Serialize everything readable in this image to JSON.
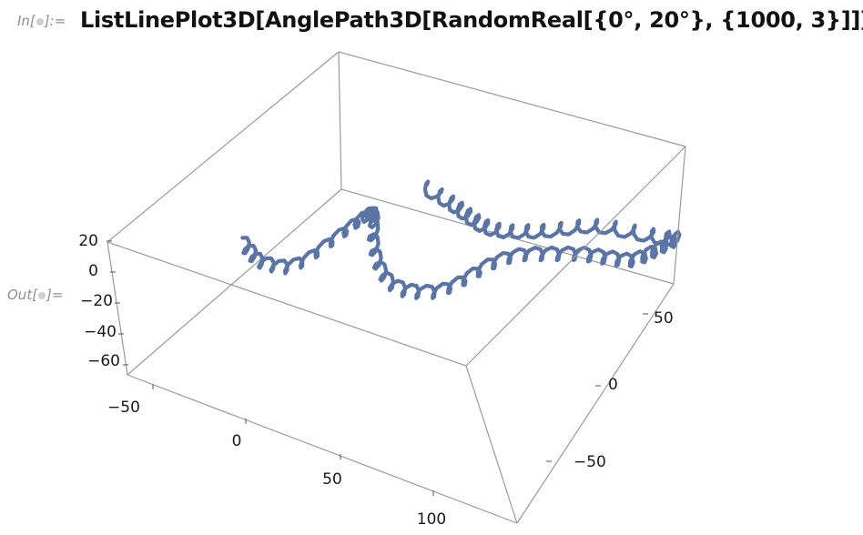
{
  "cell": {
    "in_label_prefix": "In[",
    "in_label_suffix": "]:=",
    "out_label_prefix": "Out[",
    "out_label_suffix": "]=",
    "input_code": "ListLinePlot3D[AnglePath3D[RandomReal[{0°, 20°}, {1000, 3}]]]"
  },
  "colors": {
    "curve": "#5a74a6",
    "box": "#9a9a9a",
    "tick_text": "#1a1a1a"
  },
  "chart_data": {
    "type": "line",
    "dimension": "3d",
    "x_ticks": [
      "−50",
      "0",
      "50",
      "100"
    ],
    "y_ticks": [
      "−50",
      "0",
      "50"
    ],
    "z_ticks": [
      "20",
      "0",
      "−20",
      "−40",
      "−60"
    ],
    "xlim": [
      -60,
      130
    ],
    "ylim": [
      -85,
      75
    ],
    "zlim": [
      -65,
      25
    ],
    "grid": false,
    "legend": "none",
    "series": [
      {
        "values": [
          [
            -50,
            -10,
            -30
          ],
          [
            -45,
            -12,
            -32
          ],
          [
            -40,
            -14,
            -34
          ],
          [
            -35,
            -12,
            -36
          ],
          [
            -30,
            -8,
            -38
          ],
          [
            -25,
            -2,
            -36
          ],
          [
            -20,
            4,
            -30
          ],
          [
            -15,
            10,
            -24
          ],
          [
            -10,
            14,
            -18
          ],
          [
            -5,
            16,
            -12
          ],
          [
            0,
            14,
            -6
          ],
          [
            5,
            10,
            -2
          ],
          [
            10,
            4,
            0
          ],
          [
            15,
            -4,
            -2
          ],
          [
            20,
            -10,
            -6
          ],
          [
            25,
            -14,
            -10
          ],
          [
            30,
            -16,
            -14
          ],
          [
            35,
            -14,
            -18
          ],
          [
            40,
            -10,
            -20
          ],
          [
            45,
            -4,
            -22
          ],
          [
            50,
            2,
            -20
          ],
          [
            55,
            8,
            -16
          ],
          [
            60,
            14,
            -12
          ],
          [
            65,
            20,
            -10
          ],
          [
            70,
            26,
            -10
          ],
          [
            75,
            32,
            -12
          ],
          [
            80,
            38,
            -14
          ],
          [
            85,
            44,
            -16
          ],
          [
            90,
            48,
            -18
          ],
          [
            95,
            52,
            -20
          ],
          [
            100,
            56,
            -22
          ],
          [
            105,
            60,
            -20
          ],
          [
            110,
            62,
            -16
          ],
          [
            115,
            64,
            -12
          ],
          [
            120,
            66,
            -8
          ],
          [
            118,
            62,
            -6
          ],
          [
            112,
            58,
            -4
          ],
          [
            104,
            54,
            -2
          ],
          [
            96,
            50,
            0
          ],
          [
            88,
            46,
            0
          ],
          [
            80,
            42,
            -2
          ],
          [
            72,
            38,
            -4
          ],
          [
            64,
            36,
            -6
          ],
          [
            56,
            34,
            -8
          ],
          [
            48,
            34,
            -10
          ],
          [
            40,
            36,
            -12
          ],
          [
            32,
            40,
            -14
          ],
          [
            24,
            44,
            -16
          ],
          [
            16,
            48,
            -18
          ],
          [
            8,
            50,
            -18
          ],
          [
            0,
            50,
            -16
          ]
        ]
      }
    ]
  }
}
